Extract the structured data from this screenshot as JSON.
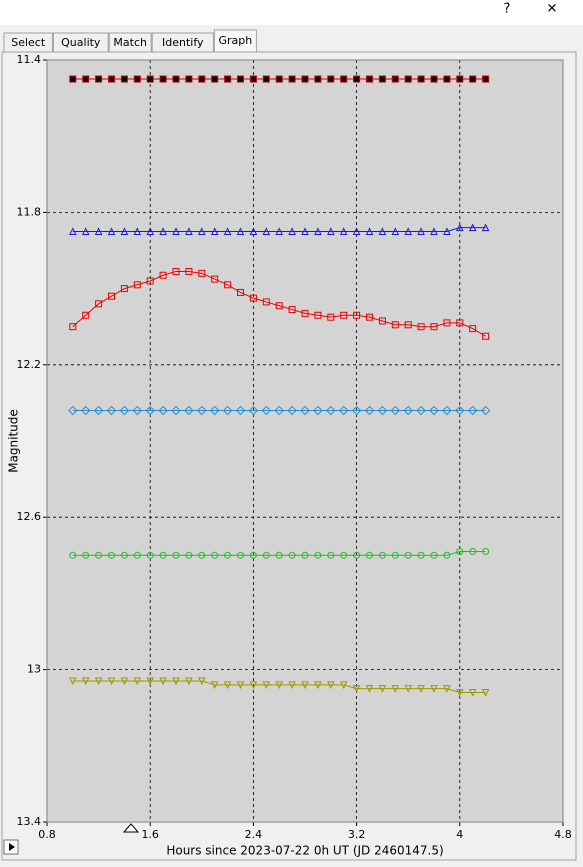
{
  "window": {
    "help_button": "?",
    "close_button": "✕"
  },
  "tabs": [
    "Select",
    "Quality",
    "Match",
    "Identify",
    "Graph"
  ],
  "chart_data": {
    "type": "scatter",
    "x_label": "Hours since 2023-07-22 0h UT (JD 2460147.5)",
    "y_label": "Magnitude",
    "xlim": [
      0.8,
      4.8
    ],
    "xticks": [
      0.8,
      1.6,
      2.4,
      3.2,
      4,
      4.8
    ],
    "ylim": [
      11.4,
      13.4
    ],
    "yticks": [
      11.4,
      11.8,
      12.2,
      12.6,
      13,
      13.4
    ],
    "y_inverted": true,
    "grid": true,
    "x": [
      1.0,
      1.1,
      1.2,
      1.3,
      1.4,
      1.5,
      1.6,
      1.7,
      1.8,
      1.9,
      2.0,
      2.1,
      2.2,
      2.3,
      2.4,
      2.5,
      2.6,
      2.7,
      2.8,
      2.9,
      3.0,
      3.1,
      3.2,
      3.3,
      3.4,
      3.5,
      3.6,
      3.7,
      3.8,
      3.9,
      4.0,
      4.1,
      4.2
    ],
    "series": [
      {
        "marker": "square",
        "color": "#cc0000",
        "fill": "#000000",
        "values": [
          11.45,
          11.45,
          11.45,
          11.45,
          11.45,
          11.45,
          11.45,
          11.45,
          11.45,
          11.45,
          11.45,
          11.45,
          11.45,
          11.45,
          11.45,
          11.45,
          11.45,
          11.45,
          11.45,
          11.45,
          11.45,
          11.45,
          11.45,
          11.45,
          11.45,
          11.45,
          11.45,
          11.45,
          11.45,
          11.45,
          11.45,
          11.45,
          11.45
        ]
      },
      {
        "marker": "triangle",
        "color": "#1a1ad0",
        "fill": "none",
        "values": [
          11.85,
          11.85,
          11.85,
          11.85,
          11.85,
          11.85,
          11.85,
          11.85,
          11.85,
          11.85,
          11.85,
          11.85,
          11.85,
          11.85,
          11.85,
          11.85,
          11.85,
          11.85,
          11.85,
          11.85,
          11.85,
          11.85,
          11.85,
          11.85,
          11.85,
          11.85,
          11.85,
          11.85,
          11.85,
          11.85,
          11.84,
          11.84,
          11.84
        ]
      },
      {
        "marker": "square",
        "color": "#ee0000",
        "fill": "none",
        "values": [
          12.1,
          12.07,
          12.04,
          12.02,
          12.0,
          11.99,
          11.98,
          11.965,
          11.955,
          11.955,
          11.96,
          11.975,
          11.99,
          12.01,
          12.025,
          12.035,
          12.045,
          12.055,
          12.065,
          12.07,
          12.075,
          12.07,
          12.07,
          12.075,
          12.085,
          12.095,
          12.095,
          12.1,
          12.1,
          12.09,
          12.09,
          12.105,
          12.125
        ]
      },
      {
        "marker": "diamond",
        "color": "#2a8fd0",
        "fill": "none",
        "values": [
          12.32,
          12.32,
          12.32,
          12.32,
          12.32,
          12.32,
          12.32,
          12.32,
          12.32,
          12.32,
          12.32,
          12.32,
          12.32,
          12.32,
          12.32,
          12.32,
          12.32,
          12.32,
          12.32,
          12.32,
          12.32,
          12.32,
          12.32,
          12.32,
          12.32,
          12.32,
          12.32,
          12.32,
          12.32,
          12.32,
          12.32,
          12.32,
          12.32
        ]
      },
      {
        "marker": "circle",
        "color": "#22bb22",
        "fill": "none",
        "values": [
          12.7,
          12.7,
          12.7,
          12.7,
          12.7,
          12.7,
          12.7,
          12.7,
          12.7,
          12.7,
          12.7,
          12.7,
          12.7,
          12.7,
          12.7,
          12.7,
          12.7,
          12.7,
          12.7,
          12.7,
          12.7,
          12.7,
          12.7,
          12.7,
          12.7,
          12.7,
          12.7,
          12.7,
          12.7,
          12.7,
          12.69,
          12.69,
          12.69
        ]
      },
      {
        "marker": "triangle-down",
        "color": "#9a9a00",
        "fill": "none",
        "values": [
          13.03,
          13.03,
          13.03,
          13.03,
          13.03,
          13.03,
          13.03,
          13.03,
          13.03,
          13.03,
          13.03,
          13.04,
          13.04,
          13.04,
          13.04,
          13.04,
          13.04,
          13.04,
          13.04,
          13.04,
          13.04,
          13.04,
          13.05,
          13.05,
          13.05,
          13.05,
          13.05,
          13.05,
          13.05,
          13.05,
          13.06,
          13.06,
          13.06
        ]
      }
    ]
  }
}
